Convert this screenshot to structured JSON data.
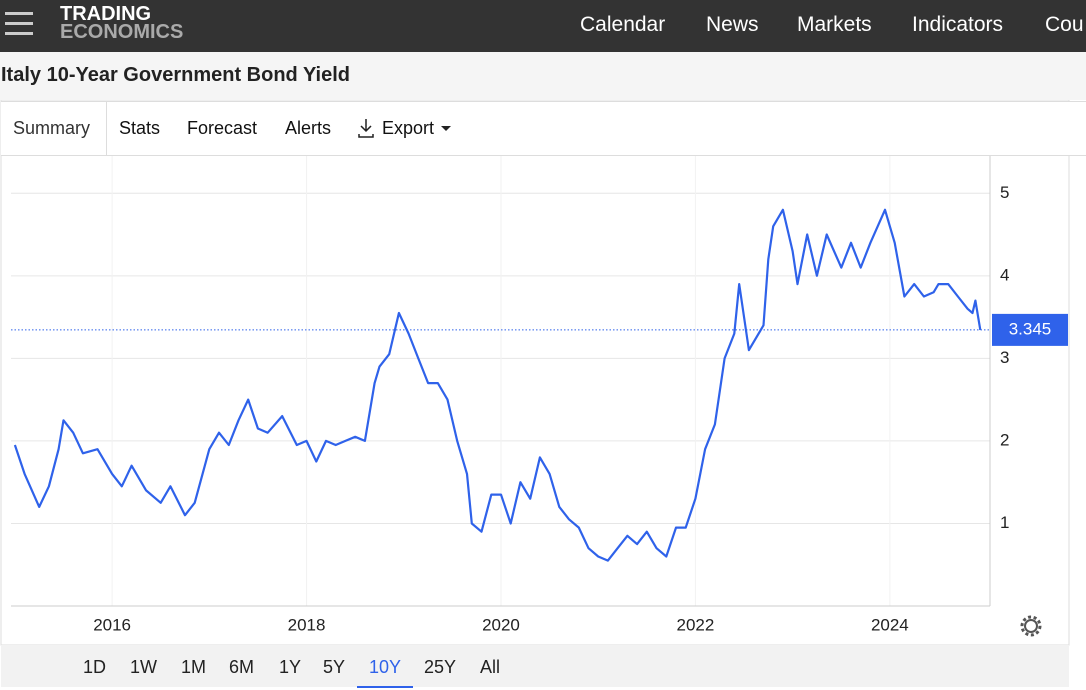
{
  "nav": {
    "logo_top": "TRADING",
    "logo_bottom": "ECONOMICS",
    "links": [
      "Calendar",
      "News",
      "Markets",
      "Indicators",
      "Cou"
    ]
  },
  "title": "Italy 10-Year Government Bond Yield",
  "tabs": [
    "Summary",
    "Stats",
    "Forecast",
    "Alerts",
    "Export"
  ],
  "ranges": [
    "1D",
    "1W",
    "1M",
    "6M",
    "1Y",
    "5Y",
    "10Y",
    "25Y",
    "All"
  ],
  "selected_range": "10Y",
  "chart_data": {
    "type": "line",
    "series": [
      {
        "name": "Italy 10Y Bond Yield",
        "color": "#2f62ea",
        "x": [
          2015.0,
          2015.1,
          2015.25,
          2015.35,
          2015.45,
          2015.5,
          2015.6,
          2015.7,
          2015.85,
          2016.0,
          2016.1,
          2016.2,
          2016.35,
          2016.5,
          2016.6,
          2016.75,
          2016.85,
          2017.0,
          2017.1,
          2017.2,
          2017.3,
          2017.4,
          2017.5,
          2017.6,
          2017.75,
          2017.9,
          2018.0,
          2018.1,
          2018.2,
          2018.3,
          2018.4,
          2018.5,
          2018.6,
          2018.7,
          2018.75,
          2018.85,
          2018.95,
          2019.05,
          2019.15,
          2019.25,
          2019.35,
          2019.45,
          2019.55,
          2019.65,
          2019.7,
          2019.8,
          2019.9,
          2020.0,
          2020.1,
          2020.2,
          2020.3,
          2020.4,
          2020.5,
          2020.6,
          2020.7,
          2020.8,
          2020.9,
          2021.0,
          2021.1,
          2021.2,
          2021.3,
          2021.4,
          2021.5,
          2021.6,
          2021.7,
          2021.8,
          2021.9,
          2022.0,
          2022.1,
          2022.2,
          2022.3,
          2022.4,
          2022.45,
          2022.55,
          2022.7,
          2022.75,
          2022.8,
          2022.9,
          2023.0,
          2023.05,
          2023.15,
          2023.25,
          2023.35,
          2023.5,
          2023.6,
          2023.7,
          2023.8,
          2023.95,
          2024.05,
          2024.15,
          2024.25,
          2024.35,
          2024.45,
          2024.5,
          2024.6,
          2024.7,
          2024.8,
          2024.85,
          2024.88,
          2024.93
        ],
        "values": [
          1.95,
          1.6,
          1.2,
          1.45,
          1.9,
          2.25,
          2.1,
          1.85,
          1.9,
          1.6,
          1.45,
          1.7,
          1.4,
          1.25,
          1.45,
          1.1,
          1.25,
          1.9,
          2.1,
          1.95,
          2.25,
          2.5,
          2.15,
          2.1,
          2.3,
          1.95,
          2.0,
          1.75,
          2.0,
          1.95,
          2.0,
          2.05,
          2.0,
          2.7,
          2.9,
          3.05,
          3.55,
          3.3,
          3.0,
          2.7,
          2.7,
          2.5,
          2.0,
          1.6,
          1.0,
          0.9,
          1.35,
          1.35,
          1.0,
          1.5,
          1.3,
          1.8,
          1.6,
          1.2,
          1.05,
          0.95,
          0.7,
          0.6,
          0.55,
          0.7,
          0.85,
          0.75,
          0.9,
          0.7,
          0.6,
          0.95,
          0.95,
          1.3,
          1.9,
          2.2,
          3.0,
          3.3,
          3.9,
          3.1,
          3.4,
          4.2,
          4.6,
          4.8,
          4.3,
          3.9,
          4.5,
          4.0,
          4.5,
          4.1,
          4.4,
          4.1,
          4.4,
          4.8,
          4.4,
          3.75,
          3.9,
          3.75,
          3.8,
          3.9,
          3.9,
          3.75,
          3.6,
          3.55,
          3.7,
          3.345
        ]
      }
    ],
    "last_value": 3.345,
    "xlim": [
      2014.96,
      2025.03
    ],
    "xticks": [
      2016,
      2018,
      2020,
      2022,
      2024
    ],
    "ylim": [
      0,
      5.5
    ],
    "yticks": [
      1,
      2,
      3,
      4,
      5
    ],
    "grid": true
  }
}
